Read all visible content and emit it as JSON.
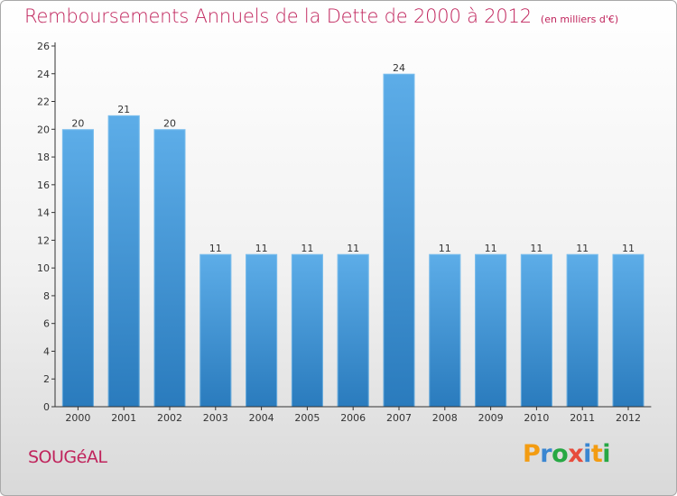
{
  "title": "Remboursements Annuels de la Dette de 2000 à 2012",
  "unit_label": "(en milliers d'€)",
  "commune": "SOUGéAL",
  "logo": {
    "text": "Proxiti",
    "letters": [
      {
        "ch": "P",
        "color": "#f39c12"
      },
      {
        "ch": "r",
        "color": "#3a86d1"
      },
      {
        "ch": "o",
        "color": "#27a844"
      },
      {
        "ch": "x",
        "color": "#e74c3c"
      },
      {
        "ch": "i",
        "color": "#3a86d1"
      },
      {
        "ch": "t",
        "color": "#f39c12"
      },
      {
        "ch": "i",
        "color": "#27a844"
      }
    ]
  },
  "colors": {
    "title": "#c0245c",
    "bar_light": "#5dade8",
    "bar_dark": "#2a7bbd",
    "axis": "#333333"
  },
  "chart_data": {
    "type": "bar",
    "categories": [
      "2000",
      "2001",
      "2002",
      "2003",
      "2004",
      "2005",
      "2006",
      "2007",
      "2008",
      "2009",
      "2010",
      "2011",
      "2012"
    ],
    "values": [
      20,
      21,
      20,
      11,
      11,
      11,
      11,
      24,
      11,
      11,
      11,
      11,
      11
    ],
    "data_labels": [
      "20",
      "21",
      "20",
      "11",
      "11",
      "11",
      "11",
      "24",
      "11",
      "11",
      "11",
      "11",
      "11"
    ],
    "ylim": [
      0,
      26
    ],
    "yticks": [
      0,
      2,
      4,
      6,
      8,
      10,
      12,
      14,
      16,
      18,
      20,
      22,
      24,
      26
    ],
    "xlabel": "",
    "ylabel": "",
    "grid": false,
    "legend": "none"
  }
}
